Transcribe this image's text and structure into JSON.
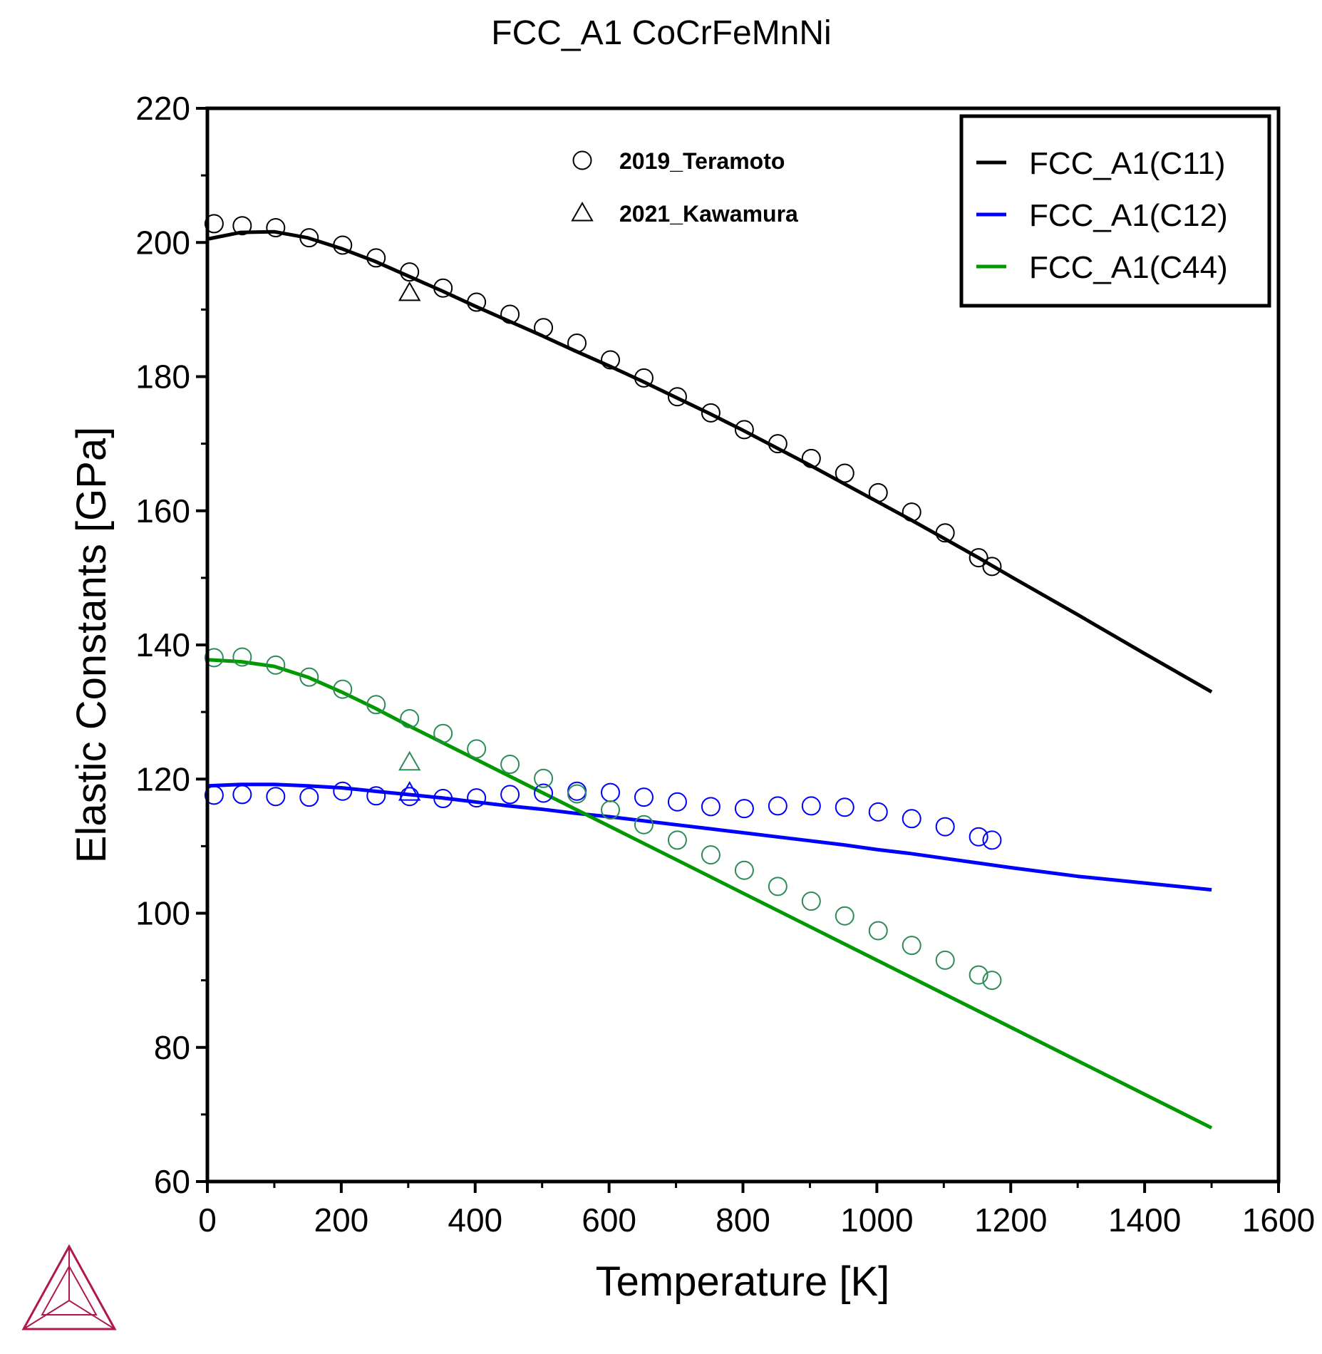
{
  "chart_data": {
    "type": "line",
    "title": "FCC_A1 CoCrFeMnNi",
    "xlabel": "Temperature [K]",
    "ylabel": "Elastic Constants [GPa]",
    "xlim": [
      0,
      1600
    ],
    "ylim": [
      60,
      220
    ],
    "xticks": [
      0,
      200,
      400,
      600,
      800,
      1000,
      1200,
      1400,
      1600
    ],
    "yticks": [
      60,
      80,
      100,
      120,
      140,
      160,
      180,
      200,
      220
    ],
    "grid": false,
    "legend_position": "top-right",
    "series": [
      {
        "name": "FCC_A1(C11)",
        "color": "#000000",
        "x": [
          0,
          50,
          100,
          150,
          200,
          250,
          300,
          350,
          400,
          450,
          500,
          550,
          600,
          650,
          700,
          750,
          800,
          850,
          900,
          950,
          1000,
          1050,
          1100,
          1150,
          1200,
          1300,
          1400,
          1500
        ],
        "y": [
          200.5,
          201.5,
          201.6,
          200.7,
          199.1,
          197.2,
          195.0,
          192.8,
          190.5,
          188.3,
          186.1,
          183.8,
          181.6,
          179.3,
          176.9,
          174.5,
          172.0,
          169.4,
          166.8,
          164.1,
          161.4,
          158.7,
          155.9,
          153.1,
          150.2,
          144.5,
          138.7,
          133.0
        ]
      },
      {
        "name": "FCC_A1(C12)",
        "color": "#0000ff",
        "x": [
          0,
          50,
          100,
          150,
          200,
          250,
          300,
          350,
          400,
          450,
          500,
          550,
          600,
          650,
          700,
          750,
          800,
          850,
          900,
          950,
          1000,
          1050,
          1100,
          1150,
          1200,
          1300,
          1400,
          1500
        ],
        "y": [
          119.0,
          119.2,
          119.2,
          119.0,
          118.7,
          118.2,
          117.7,
          117.2,
          116.6,
          116.0,
          115.5,
          114.9,
          114.4,
          113.8,
          113.2,
          112.6,
          112.0,
          111.4,
          110.8,
          110.2,
          109.5,
          108.9,
          108.2,
          107.5,
          106.8,
          105.5,
          104.5,
          103.5
        ]
      },
      {
        "name": "FCC_A1(C44)",
        "color": "#009900",
        "x": [
          0,
          50,
          100,
          150,
          200,
          250,
          300,
          350,
          400,
          450,
          500,
          550,
          600,
          650,
          700,
          750,
          800,
          850,
          900,
          950,
          1000,
          1050,
          1100,
          1150,
          1200,
          1300,
          1400,
          1500
        ],
        "y": [
          137.8,
          137.5,
          136.8,
          135.2,
          133.0,
          130.6,
          128.0,
          125.5,
          123.0,
          120.5,
          118.0,
          115.5,
          113.0,
          110.5,
          108.0,
          105.5,
          103.0,
          100.5,
          98.0,
          95.5,
          93.0,
          90.5,
          88.0,
          85.5,
          83.0,
          78.0,
          73.0,
          68.0
        ]
      }
    ],
    "experimental": [
      {
        "name": "2019_Teramoto",
        "marker": "circle",
        "sets": [
          {
            "color": "#000000",
            "points": [
              [
                10,
                202.8
              ],
              [
                52,
                202.5
              ],
              [
                102,
                202.2
              ],
              [
                152,
                200.7
              ],
              [
                202,
                199.6
              ],
              [
                252,
                197.7
              ],
              [
                302,
                195.6
              ],
              [
                352,
                193.2
              ],
              [
                402,
                191.1
              ],
              [
                452,
                189.3
              ],
              [
                502,
                187.3
              ],
              [
                552,
                185.0
              ],
              [
                602,
                182.5
              ],
              [
                652,
                179.8
              ],
              [
                702,
                177.0
              ],
              [
                752,
                174.6
              ],
              [
                802,
                172.1
              ],
              [
                852,
                170.0
              ],
              [
                902,
                167.8
              ],
              [
                952,
                165.6
              ],
              [
                1002,
                162.7
              ],
              [
                1052,
                159.8
              ],
              [
                1102,
                156.7
              ],
              [
                1152,
                153.0
              ],
              [
                1172,
                151.7
              ]
            ]
          },
          {
            "color": "#0000ff",
            "points": [
              [
                10,
                117.6
              ],
              [
                52,
                117.7
              ],
              [
                102,
                117.4
              ],
              [
                152,
                117.3
              ],
              [
                202,
                118.2
              ],
              [
                252,
                117.5
              ],
              [
                302,
                117.4
              ],
              [
                352,
                117.1
              ],
              [
                402,
                117.2
              ],
              [
                452,
                117.7
              ],
              [
                502,
                117.9
              ],
              [
                552,
                118.2
              ],
              [
                602,
                118.0
              ],
              [
                652,
                117.3
              ],
              [
                702,
                116.6
              ],
              [
                752,
                115.9
              ],
              [
                802,
                115.6
              ],
              [
                852,
                116.0
              ],
              [
                902,
                116.0
              ],
              [
                952,
                115.8
              ],
              [
                1002,
                115.1
              ],
              [
                1052,
                114.1
              ],
              [
                1102,
                112.9
              ],
              [
                1152,
                111.4
              ],
              [
                1172,
                110.9
              ]
            ]
          },
          {
            "color": "#2e8b57",
            "points": [
              [
                10,
                138.1
              ],
              [
                52,
                138.2
              ],
              [
                102,
                137.0
              ],
              [
                152,
                135.2
              ],
              [
                202,
                133.4
              ],
              [
                252,
                131.1
              ],
              [
                302,
                129.0
              ],
              [
                352,
                126.8
              ],
              [
                402,
                124.5
              ],
              [
                452,
                122.2
              ],
              [
                502,
                120.1
              ],
              [
                552,
                117.8
              ],
              [
                602,
                115.4
              ],
              [
                652,
                113.2
              ],
              [
                702,
                110.9
              ],
              [
                752,
                108.7
              ],
              [
                802,
                106.4
              ],
              [
                852,
                104.0
              ],
              [
                902,
                101.8
              ],
              [
                952,
                99.6
              ],
              [
                1002,
                97.4
              ],
              [
                1052,
                95.2
              ],
              [
                1102,
                93.0
              ],
              [
                1152,
                90.8
              ],
              [
                1172,
                90.0
              ]
            ]
          }
        ]
      },
      {
        "name": "2021_Kawamura",
        "marker": "triangle",
        "sets": [
          {
            "color": "#000000",
            "points": [
              [
                302,
                192.5
              ]
            ]
          },
          {
            "color": "#0000ff",
            "points": [
              [
                302,
                118.0
              ]
            ]
          },
          {
            "color": "#2e8b57",
            "points": [
              [
                302,
                122.5
              ]
            ]
          }
        ]
      }
    ]
  }
}
